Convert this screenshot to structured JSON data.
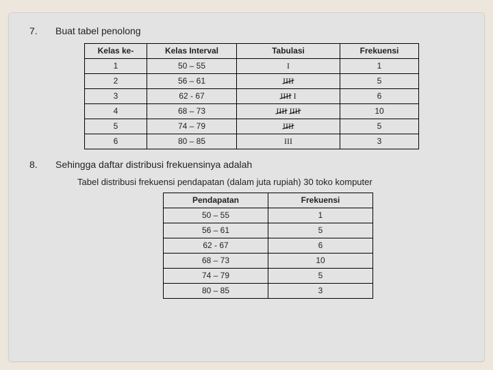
{
  "item7": {
    "number": "7.",
    "text": "Buat tabel penolong"
  },
  "item8": {
    "number": "8.",
    "text": "Sehingga daftar distribusi frekuensinya adalah"
  },
  "table1": {
    "headers": [
      "Kelas ke-",
      "Kelas Interval",
      "Tabulasi",
      "Frekuensi"
    ],
    "rows": [
      {
        "k": "1",
        "interval": "50 – 55",
        "tally_fives": 0,
        "tally_ones": 1,
        "freq": "1"
      },
      {
        "k": "2",
        "interval": "56 – 61",
        "tally_fives": 1,
        "tally_ones": 0,
        "freq": "5"
      },
      {
        "k": "3",
        "interval": "62 - 67",
        "tally_fives": 1,
        "tally_ones": 1,
        "freq": "6"
      },
      {
        "k": "4",
        "interval": "68 – 73",
        "tally_fives": 2,
        "tally_ones": 0,
        "freq": "10"
      },
      {
        "k": "5",
        "interval": "74 – 79",
        "tally_fives": 1,
        "tally_ones": 0,
        "freq": "5"
      },
      {
        "k": "6",
        "interval": "80 – 85",
        "tally_fives": 0,
        "tally_ones": 3,
        "freq": "3"
      }
    ]
  },
  "caption2": "Tabel distribusi frekuensi pendapatan (dalam juta rupiah) 30 toko komputer",
  "table2": {
    "headers": [
      "Pendapatan",
      "Frekuensi"
    ],
    "rows": [
      {
        "interval": "50 – 55",
        "freq": "1"
      },
      {
        "interval": "56 – 61",
        "freq": "5"
      },
      {
        "interval": "62 - 67",
        "freq": "6"
      },
      {
        "interval": "68 – 73",
        "freq": "10"
      },
      {
        "interval": "74 – 79",
        "freq": "5"
      },
      {
        "interval": "80 – 85",
        "freq": "3"
      }
    ]
  },
  "colors": {
    "page_bg": "#ece6dc",
    "panel_bg": "#e3e3e3",
    "border": "#000000",
    "text": "#222222"
  }
}
